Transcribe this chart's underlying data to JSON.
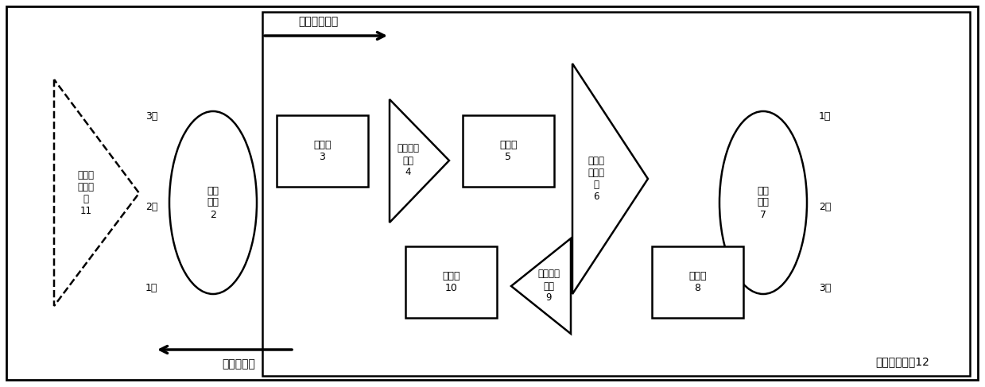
{
  "fig_width": 12.39,
  "fig_height": 4.87,
  "bg_color": "#ffffff",
  "line_color": "#000000",
  "relay_label": "中继放大装置12",
  "comp11_label": "分布式\n光放大\n器\n11",
  "comp2_label": "光环\n形器\n2",
  "comp3_label": "滤波器\n3",
  "comp4_label": "光功率放\n大器\n4",
  "comp5_label": "滤波器\n5",
  "comp6_label": "分布式\n光放大\n器\n6",
  "comp7_label": "光环\n形器\n7",
  "comp8_label": "滤波器\n8",
  "comp9_label": "前置光放\n大器\n9",
  "comp10_label": "滤波器\n10",
  "strong_label": "强激励光信号",
  "weak_label": "弱传感信号"
}
